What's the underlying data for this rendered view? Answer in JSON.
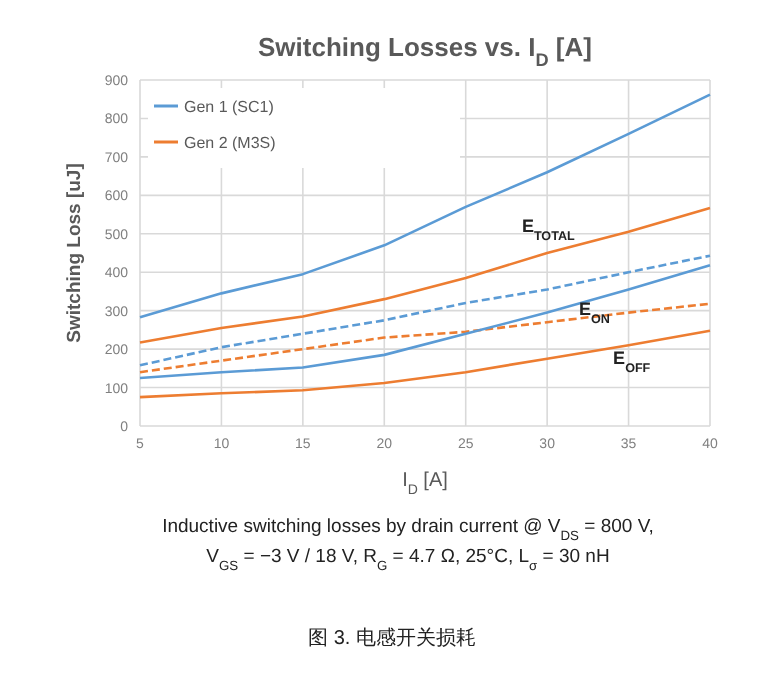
{
  "chart_data": {
    "type": "line",
    "title": "Switching Losses vs. I$_{D}$ [A]",
    "xlabel": "I$_{D}$ [A]",
    "ylabel": "Switching Loss [uJ]",
    "x": [
      5,
      10,
      15,
      20,
      25,
      30,
      35,
      40
    ],
    "xlim": [
      5,
      40
    ],
    "xticks": [
      5,
      10,
      15,
      20,
      25,
      30,
      35,
      40
    ],
    "ylim": [
      0,
      900
    ],
    "yticks": [
      0,
      100,
      200,
      300,
      400,
      500,
      600,
      700,
      800,
      900
    ],
    "grid": true,
    "legend": "top left",
    "series": [
      {
        "name": "Gen 1 (SC1)",
        "color": "#5b9bd5",
        "values": [
          283,
          345,
          395,
          470,
          570,
          660,
          760,
          862
        ]
      },
      {
        "name": "Gen 2 (M3S)",
        "color": "#ed7d31",
        "values": [
          217,
          255,
          285,
          330,
          385,
          450,
          505,
          567
        ]
      },
      {
        "color": "#5b9bd5",
        "line_style": "dashed",
        "values": [
          158,
          205,
          240,
          275,
          320,
          355,
          400,
          443
        ]
      },
      {
        "color": "#ed7d31",
        "line_style": "dashed",
        "values": [
          140,
          170,
          200,
          230,
          245,
          270,
          295,
          318
        ]
      },
      {
        "color": "#5b9bd5",
        "values": [
          125,
          140,
          152,
          185,
          240,
          295,
          355,
          418
        ]
      },
      {
        "color": "#ed7d31",
        "values": [
          75,
          85,
          93,
          112,
          140,
          175,
          210,
          248
        ]
      }
    ],
    "annotations": [
      "E$_{TOTAL}$",
      "E$_{ON}$",
      "E$_{OFF}$",
      "Inductive switching losses by drain current @ V$_{DS}$ = 800 V,",
      "V$_{GS}$ = −3 V / 18 V, R$_{G}$ = 4.7 Ω, 25°C, L$_{σ}$ = 30 nH",
      "图 3. 电感开关损耗"
    ]
  }
}
